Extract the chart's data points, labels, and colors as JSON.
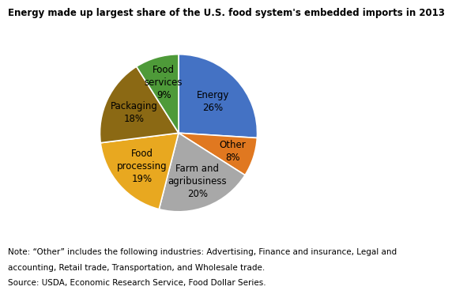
{
  "title": "Energy made up largest share of the U.S. food system's embedded imports in 2013",
  "slices": [
    {
      "label": "Energy\n26%",
      "value": 26,
      "color": "#4472C4"
    },
    {
      "label": "Other\n8%",
      "value": 8,
      "color": "#E07820"
    },
    {
      "label": "Farm and\nagribusiness\n20%",
      "value": 20,
      "color": "#A8A8A8"
    },
    {
      "label": "Food\nprocessing\n19%",
      "value": 19,
      "color": "#E8A820"
    },
    {
      "label": "Packaging\n18%",
      "value": 18,
      "color": "#8B6914"
    },
    {
      "label": "Food\nservices\n9%",
      "value": 9,
      "color": "#4E9A39"
    }
  ],
  "note_line1": "Note: “Other” includes the following industries: Advertising, Finance and insurance, Legal and",
  "note_line2": "accounting, Retail trade, Transportation, and Wholesale trade.",
  "source_line": "Source: USDA, Economic Research Service, Food Dollar Series.",
  "title_fontsize": 8.5,
  "label_fontsize": 8.5,
  "note_fontsize": 7.5
}
